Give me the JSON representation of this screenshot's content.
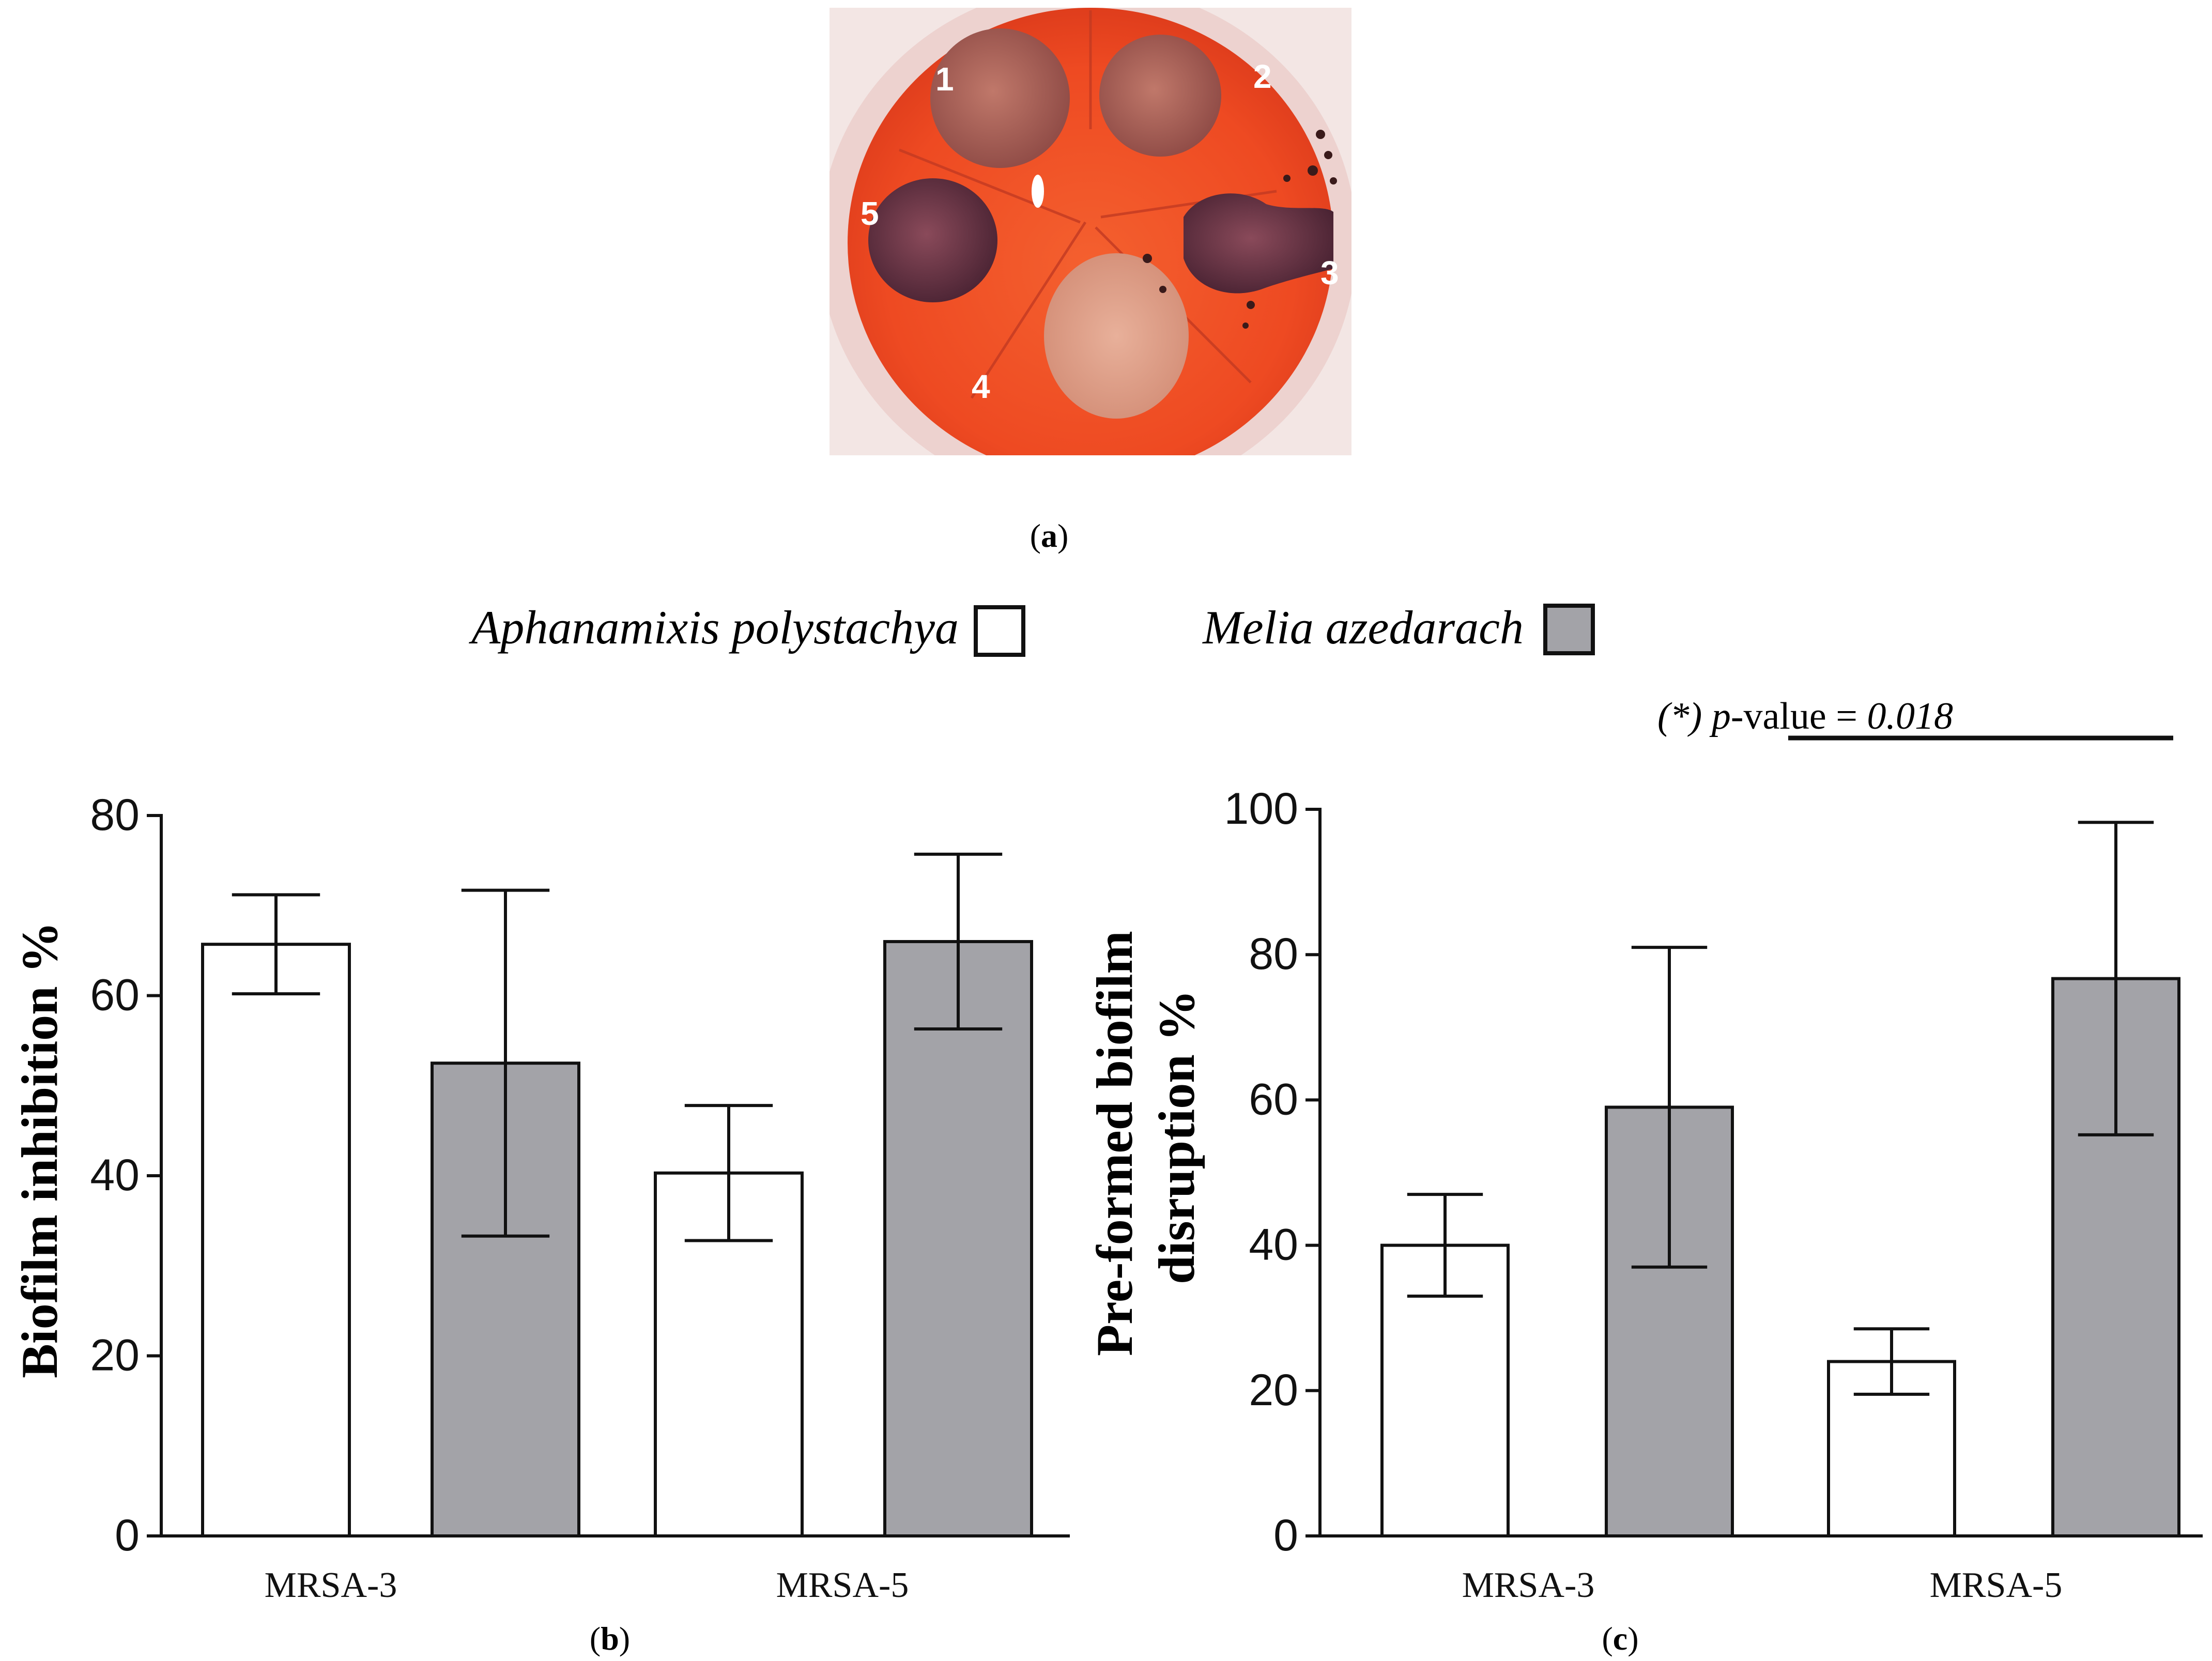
{
  "panel_a": {
    "caption_paren_open": "(",
    "caption_letter": "a",
    "caption_paren_close": ")",
    "plate_labels": [
      "1",
      "2",
      "3",
      "4",
      "5"
    ]
  },
  "legend": {
    "series_a": "Aphanamixis polystachya",
    "series_b": "Melia azedarach"
  },
  "significance": {
    "star": "(*)",
    "p": "p",
    "label": "-value =",
    "value": "0.018"
  },
  "colors": {
    "series_a_fill": "#ffffff",
    "series_b_fill": "#a3a3a8",
    "stroke": "#111111"
  },
  "chart_data": [
    {
      "id": "b",
      "type": "bar",
      "caption_letter": "b",
      "ylabel": "Biofilm inhibition %",
      "ylim": [
        0,
        80
      ],
      "yticks": [
        0,
        20,
        40,
        60,
        80
      ],
      "categories": [
        "MRSA-3",
        "MRSA-5"
      ],
      "series": [
        {
          "name": "Aphanamixis polystachya",
          "values": [
            65.7,
            40.3
          ],
          "errors": [
            5.5,
            7.5
          ]
        },
        {
          "name": "Melia azedarach",
          "values": [
            52.5,
            66.0
          ],
          "errors": [
            19.2,
            9.7
          ]
        }
      ]
    },
    {
      "id": "c",
      "type": "bar",
      "caption_letter": "c",
      "ylabel_lines": [
        "Pre-formed biofilm",
        "disruption %"
      ],
      "ylim": [
        0,
        100
      ],
      "yticks": [
        0,
        20,
        40,
        60,
        80,
        100
      ],
      "categories": [
        "MRSA-3",
        "MRSA-5"
      ],
      "series": [
        {
          "name": "Aphanamixis polystachya",
          "values": [
            40.0,
            24.0
          ],
          "errors": [
            7.0,
            4.5
          ]
        },
        {
          "name": "Melia azedarach",
          "values": [
            59.0,
            76.7
          ],
          "errors": [
            22.0,
            21.5
          ]
        }
      ]
    }
  ]
}
